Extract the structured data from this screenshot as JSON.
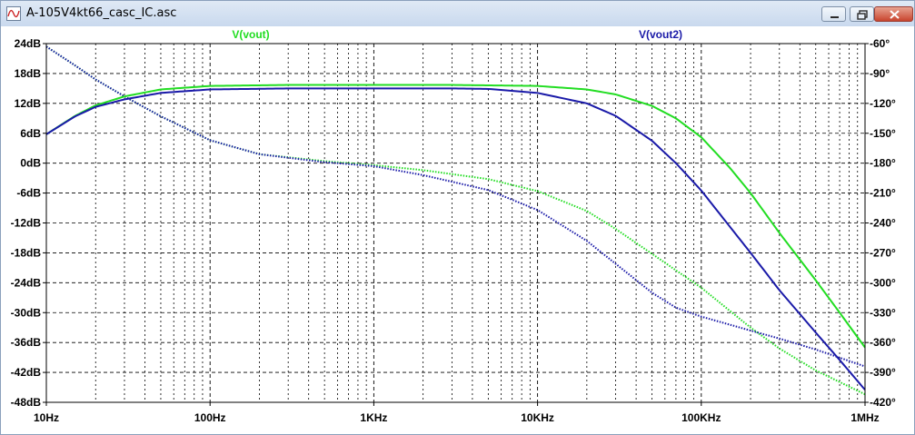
{
  "window": {
    "title": "A-105V4kt66_casc_IC.asc"
  },
  "chart_data": {
    "type": "line",
    "x_scale": "log",
    "xlim_hz": [
      10,
      1000000
    ],
    "x_ticks": [
      {
        "v": 10,
        "label": "10Hz"
      },
      {
        "v": 100,
        "label": "100Hz"
      },
      {
        "v": 1000,
        "label": "1KHz"
      },
      {
        "v": 10000,
        "label": "10KHz"
      },
      {
        "v": 100000,
        "label": "100KHz"
      },
      {
        "v": 1000000,
        "label": "1MHz"
      }
    ],
    "ylim_db": [
      -48,
      24
    ],
    "y_ticks": [
      {
        "v": 24,
        "label": "24dB"
      },
      {
        "v": 18,
        "label": "18dB"
      },
      {
        "v": 12,
        "label": "12dB"
      },
      {
        "v": 6,
        "label": "6dB"
      },
      {
        "v": 0,
        "label": "0dB"
      },
      {
        "v": -6,
        "label": "-6dB"
      },
      {
        "v": -12,
        "label": "-12dB"
      },
      {
        "v": -18,
        "label": "-18dB"
      },
      {
        "v": -24,
        "label": "-24dB"
      },
      {
        "v": -30,
        "label": "-30dB"
      },
      {
        "v": -36,
        "label": "-36dB"
      },
      {
        "v": -42,
        "label": "-42dB"
      },
      {
        "v": -48,
        "label": "-48dB"
      }
    ],
    "ylim_deg": [
      -420,
      -60
    ],
    "y2_ticks": [
      {
        "v": -60,
        "label": "-60°"
      },
      {
        "v": -90,
        "label": "-90°"
      },
      {
        "v": -120,
        "label": "-120°"
      },
      {
        "v": -150,
        "label": "-150°"
      },
      {
        "v": -180,
        "label": "-180°"
      },
      {
        "v": -210,
        "label": "-210°"
      },
      {
        "v": -240,
        "label": "-240°"
      },
      {
        "v": -270,
        "label": "-270°"
      },
      {
        "v": -300,
        "label": "-300°"
      },
      {
        "v": -330,
        "label": "-330°"
      },
      {
        "v": -360,
        "label": "-360°"
      },
      {
        "v": -390,
        "label": "-390°"
      },
      {
        "v": -420,
        "label": "-420°"
      }
    ],
    "grid": true,
    "series": [
      {
        "name": "V(vout)",
        "color": "#22dd22",
        "magnitude_db": [
          [
            10,
            5.8
          ],
          [
            15,
            9.5
          ],
          [
            20,
            11.6
          ],
          [
            30,
            13.4
          ],
          [
            50,
            14.8
          ],
          [
            100,
            15.5
          ],
          [
            300,
            15.7
          ],
          [
            1000,
            15.7
          ],
          [
            3000,
            15.7
          ],
          [
            10000,
            15.5
          ],
          [
            20000,
            14.8
          ],
          [
            30000,
            13.8
          ],
          [
            50000,
            11.5
          ],
          [
            70000,
            9.0
          ],
          [
            100000,
            5.2
          ],
          [
            150000,
            -1.0
          ],
          [
            200000,
            -6.0
          ],
          [
            300000,
            -14.0
          ],
          [
            500000,
            -23.5
          ],
          [
            700000,
            -30.0
          ],
          [
            1000000,
            -37.0
          ]
        ],
        "phase_deg": [
          [
            10,
            -63
          ],
          [
            15,
            -82
          ],
          [
            20,
            -96
          ],
          [
            30,
            -113
          ],
          [
            50,
            -133
          ],
          [
            100,
            -157
          ],
          [
            200,
            -171
          ],
          [
            500,
            -178
          ],
          [
            1000,
            -182
          ],
          [
            2000,
            -187
          ],
          [
            5000,
            -196
          ],
          [
            10000,
            -208
          ],
          [
            20000,
            -228
          ],
          [
            30000,
            -246
          ],
          [
            50000,
            -271
          ],
          [
            100000,
            -305
          ],
          [
            200000,
            -345
          ],
          [
            300000,
            -366
          ],
          [
            500000,
            -388
          ],
          [
            1000000,
            -412
          ]
        ]
      },
      {
        "name": "V(vout2)",
        "color": "#1a1aa8",
        "magnitude_db": [
          [
            10,
            5.8
          ],
          [
            15,
            9.4
          ],
          [
            20,
            11.3
          ],
          [
            30,
            12.8
          ],
          [
            50,
            14.1
          ],
          [
            100,
            14.8
          ],
          [
            300,
            15.0
          ],
          [
            1000,
            15.0
          ],
          [
            3000,
            15.0
          ],
          [
            5000,
            14.9
          ],
          [
            10000,
            14.1
          ],
          [
            20000,
            12.0
          ],
          [
            30000,
            9.5
          ],
          [
            50000,
            4.5
          ],
          [
            70000,
            0.0
          ],
          [
            100000,
            -5.5
          ],
          [
            200000,
            -18.0
          ],
          [
            300000,
            -25.5
          ],
          [
            500000,
            -34.0
          ],
          [
            700000,
            -39.5
          ],
          [
            1000000,
            -45.5
          ]
        ],
        "phase_deg": [
          [
            10,
            -63
          ],
          [
            15,
            -82
          ],
          [
            20,
            -96
          ],
          [
            30,
            -113
          ],
          [
            50,
            -133
          ],
          [
            100,
            -157
          ],
          [
            200,
            -171
          ],
          [
            500,
            -179
          ],
          [
            1000,
            -183
          ],
          [
            2000,
            -192
          ],
          [
            5000,
            -207
          ],
          [
            10000,
            -227
          ],
          [
            20000,
            -258
          ],
          [
            30000,
            -281
          ],
          [
            50000,
            -310
          ],
          [
            70000,
            -325
          ],
          [
            100000,
            -334
          ],
          [
            200000,
            -348
          ],
          [
            300000,
            -356
          ],
          [
            500000,
            -367
          ],
          [
            1000000,
            -384
          ]
        ]
      }
    ]
  }
}
